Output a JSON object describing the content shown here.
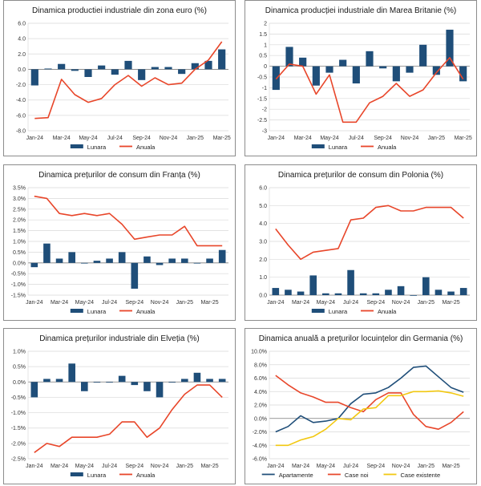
{
  "colors": {
    "bar": "#1f4e79",
    "line": "#e8462a",
    "grid": "#d9d9d9",
    "axis": "#808080",
    "apartamente": "#1f4e79",
    "case_noi": "#e8462a",
    "case_existente": "#f2c811"
  },
  "chart_data": [
    {
      "type": "bar+line",
      "title": "Dinamica productiei industriale din zona euro (%)",
      "categories": [
        "Jan-24",
        "Feb-24",
        "Mar-24",
        "Apr-24",
        "May-24",
        "Jun-24",
        "Jul-24",
        "Aug-24",
        "Sep-24",
        "Oct-24",
        "Nov-24",
        "Dec-24",
        "Jan-25",
        "Feb-25",
        "Mar-25"
      ],
      "tick_labels": [
        "Jan-24",
        "Mar-24",
        "May-24",
        "Jul-24",
        "Sep-24",
        "Nov-24",
        "Jan-25",
        "Mar-25"
      ],
      "ylim": [
        -8,
        6
      ],
      "ystep": 2,
      "ytick_format": "fixed1",
      "series": [
        {
          "name": "Lunara",
          "kind": "bar",
          "values": [
            -2.1,
            0.1,
            0.7,
            -0.2,
            -1.0,
            0.5,
            -0.7,
            1.1,
            -1.4,
            0.3,
            0.3,
            -0.6,
            0.8,
            1.1,
            2.6
          ]
        },
        {
          "name": "Anuala",
          "kind": "line",
          "values": [
            -6.4,
            -6.3,
            -1.3,
            -3.3,
            -4.3,
            -3.8,
            -2.0,
            -0.8,
            -2.2,
            -1.1,
            -2.0,
            -1.8,
            0.0,
            1.2,
            3.6
          ]
        }
      ]
    },
    {
      "type": "bar+line",
      "title": "Dinamica producției industriale din Marea Britanie (%)",
      "categories": [
        "Jan-24",
        "Feb-24",
        "Mar-24",
        "Apr-24",
        "May-24",
        "Jun-24",
        "Jul-24",
        "Aug-24",
        "Sep-24",
        "Oct-24",
        "Nov-24",
        "Dec-24",
        "Jan-25",
        "Feb-25",
        "Mar-25"
      ],
      "tick_labels": [
        "Jan-24",
        "Mar-24",
        "May-24",
        "Jul-24",
        "Sep-24",
        "Nov-24",
        "Jan-25",
        "Mar-25"
      ],
      "ylim": [
        -3,
        2
      ],
      "ystep": 0.5,
      "ytick_format": "auto",
      "series": [
        {
          "name": "Lunara",
          "kind": "bar",
          "values": [
            -1.1,
            0.9,
            0.4,
            -0.9,
            -0.3,
            0.3,
            -0.8,
            0.7,
            -0.1,
            -0.7,
            -0.3,
            1.0,
            -0.4,
            1.7,
            -0.7
          ]
        },
        {
          "name": "Anuala",
          "kind": "line",
          "values": [
            -0.6,
            0.1,
            0.0,
            -1.3,
            -0.4,
            -2.6,
            -2.6,
            -1.7,
            -1.4,
            -0.8,
            -1.4,
            -1.1,
            -0.3,
            0.4,
            -0.6
          ]
        }
      ]
    },
    {
      "type": "bar+line",
      "title": "Dinamica prețurilor de consum din Franța (%)",
      "categories": [
        "Jan-24",
        "Feb-24",
        "Mar-24",
        "Apr-24",
        "May-24",
        "Jun-24",
        "Jul-24",
        "Aug-24",
        "Sep-24",
        "Oct-24",
        "Nov-24",
        "Dec-24",
        "Jan-25",
        "Feb-25",
        "Mar-25",
        "Apr-25"
      ],
      "tick_labels": [
        "Jan-24",
        "Mar-24",
        "May-24",
        "Jul-24",
        "Sep-24",
        "Nov-24",
        "Jan-25",
        "Mar-25"
      ],
      "ylim": [
        -1.5,
        3.5
      ],
      "ystep": 0.5,
      "ytick_format": "pct1",
      "series": [
        {
          "name": "Lunara",
          "kind": "bar",
          "values": [
            -0.2,
            0.9,
            0.2,
            0.5,
            0.0,
            0.1,
            0.2,
            0.5,
            -1.2,
            0.3,
            -0.1,
            0.2,
            0.2,
            0.0,
            0.2,
            0.6
          ]
        },
        {
          "name": "Anuala",
          "kind": "line",
          "values": [
            3.1,
            3.0,
            2.3,
            2.2,
            2.3,
            2.2,
            2.3,
            1.8,
            1.1,
            1.2,
            1.3,
            1.3,
            1.7,
            0.8,
            0.8,
            0.8
          ]
        }
      ]
    },
    {
      "type": "bar+line",
      "title": "Dinamica prețurilor de consum din Polonia (%)",
      "categories": [
        "Jan-24",
        "Feb-24",
        "Mar-24",
        "Apr-24",
        "May-24",
        "Jun-24",
        "Jul-24",
        "Aug-24",
        "Sep-24",
        "Oct-24",
        "Nov-24",
        "Dec-24",
        "Jan-25",
        "Feb-25",
        "Mar-25",
        "Apr-25"
      ],
      "tick_labels": [
        "Jan-24",
        "Mar-24",
        "May-24",
        "Jul-24",
        "Sep-24",
        "Nov-24",
        "Jan-25",
        "Mar-25"
      ],
      "ylim": [
        0,
        6
      ],
      "ystep": 1,
      "ytick_format": "fixed1",
      "series": [
        {
          "name": "Lunara",
          "kind": "bar",
          "values": [
            0.4,
            0.3,
            0.2,
            1.1,
            0.1,
            0.1,
            1.4,
            0.1,
            0.1,
            0.3,
            0.5,
            0.0,
            1.0,
            0.3,
            0.2,
            0.4
          ]
        },
        {
          "name": "Anuala",
          "kind": "line",
          "values": [
            3.7,
            2.8,
            2.0,
            2.4,
            2.5,
            2.6,
            4.2,
            4.3,
            4.9,
            5.0,
            4.7,
            4.7,
            4.9,
            4.9,
            4.9,
            4.3
          ]
        }
      ]
    },
    {
      "type": "bar+line",
      "title": "Dinamica prețurilor industriale din Elveția (%)",
      "categories": [
        "Jan-24",
        "Feb-24",
        "Mar-24",
        "Apr-24",
        "May-24",
        "Jun-24",
        "Jul-24",
        "Aug-24",
        "Sep-24",
        "Oct-24",
        "Nov-24",
        "Dec-24",
        "Jan-25",
        "Feb-25",
        "Mar-25",
        "Apr-25"
      ],
      "tick_labels": [
        "Jan-24",
        "Mar-24",
        "May-24",
        "Jul-24",
        "Sep-24",
        "Nov-24",
        "Jan-25",
        "Mar-25"
      ],
      "ylim": [
        -2.5,
        1.0
      ],
      "ystep": 0.5,
      "ytick_format": "pct1",
      "series": [
        {
          "name": "Lunara",
          "kind": "bar",
          "values": [
            -0.5,
            0.1,
            0.1,
            0.6,
            -0.3,
            0.0,
            0.0,
            0.2,
            -0.1,
            -0.3,
            -0.5,
            0.0,
            0.1,
            0.3,
            0.1,
            0.1
          ]
        },
        {
          "name": "Anuala",
          "kind": "line",
          "values": [
            -2.3,
            -2.0,
            -2.1,
            -1.8,
            -1.8,
            -1.8,
            -1.7,
            -1.3,
            -1.3,
            -1.8,
            -1.5,
            -0.9,
            -0.4,
            -0.1,
            -0.1,
            -0.5
          ]
        }
      ]
    },
    {
      "type": "line",
      "title": "Dinamica anuală a prețurilor locuințelor din Germania (%)",
      "categories": [
        "Jan-24",
        "Feb-24",
        "Mar-24",
        "Apr-24",
        "May-24",
        "Jun-24",
        "Jul-24",
        "Aug-24",
        "Sep-24",
        "Oct-24",
        "Nov-24",
        "Dec-24",
        "Jan-25",
        "Feb-25",
        "Mar-25",
        "Apr-25"
      ],
      "tick_labels": [
        "Jan-24",
        "Mar-24",
        "May-24",
        "Jul-24",
        "Sep-24",
        "Nov-24",
        "Jan-25",
        "Mar-25"
      ],
      "ylim": [
        -6,
        10
      ],
      "ystep": 2,
      "ytick_format": "pct1",
      "series": [
        {
          "name": "Apartamente",
          "kind": "line",
          "values": [
            -2.0,
            -1.2,
            0.4,
            -0.6,
            -0.4,
            0.0,
            2.2,
            3.6,
            3.8,
            4.6,
            6.0,
            7.6,
            7.8,
            6.2,
            4.6,
            3.9
          ]
        },
        {
          "name": "Case noi",
          "kind": "line",
          "values": [
            6.4,
            5.0,
            3.8,
            3.2,
            2.4,
            2.4,
            1.6,
            1.0,
            2.8,
            3.8,
            3.8,
            0.6,
            -1.2,
            -1.6,
            -0.6,
            1.0
          ]
        },
        {
          "name": "Case existente",
          "kind": "line",
          "values": [
            -4.0,
            -4.0,
            -3.2,
            -2.7,
            -1.6,
            0.0,
            -0.2,
            1.4,
            1.6,
            3.4,
            3.4,
            4.0,
            4.0,
            4.1,
            3.8,
            3.3
          ]
        }
      ]
    }
  ]
}
